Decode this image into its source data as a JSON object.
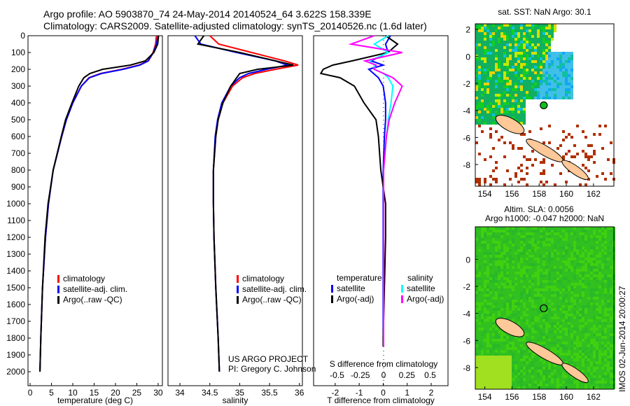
{
  "title_line1": "Argo profile: AO 5903870_74 24-May-2014 20140524_64 3.622S 158.339E",
  "title_line2": "Climatology: CARS2009. Satellite-adjusted climatology: synTS_20140526.nc (1.6d later)",
  "colors": {
    "climatology": "#ff0000",
    "satellite": "#0000ff",
    "argo": "#000000",
    "sal_satellite": "#00ffff",
    "sal_argo": "#ff00ff"
  },
  "chart_data": [
    {
      "type": "line",
      "name": "temperature",
      "xlabel": "temperature (deg C)",
      "ylabel": "",
      "xlim": [
        -0.5,
        31
      ],
      "ylim": [
        2080,
        0
      ],
      "xticks": [
        0,
        5,
        10,
        15,
        20,
        25,
        30
      ],
      "yticks": [
        0,
        100,
        200,
        300,
        400,
        500,
        600,
        700,
        800,
        900,
        1000,
        1100,
        1200,
        1300,
        1400,
        1500,
        1600,
        1700,
        1800,
        1900,
        2000
      ],
      "legend": [
        "climatology",
        "satellite-adj. clim.",
        "Argo(..raw -QC)"
      ],
      "legend_position": "lower-right",
      "pressure": [
        0,
        50,
        100,
        150,
        175,
        200,
        225,
        250,
        300,
        400,
        500,
        600,
        800,
        1000,
        1200,
        1500,
        1800,
        2000
      ],
      "series": [
        {
          "name": "climatology",
          "values": [
            29.6,
            29.4,
            28.8,
            27.6,
            25.5,
            21.5,
            16.5,
            13.8,
            12,
            10,
            8.5,
            7.4,
            5.4,
            4.3,
            3.6,
            2.9,
            2.5,
            2.3
          ]
        },
        {
          "name": "satellite-adj. clim.",
          "values": [
            30.0,
            29.6,
            28.9,
            27.7,
            25.7,
            21.8,
            16.7,
            13.9,
            12,
            10,
            8.5,
            7.4,
            5.4,
            4.3,
            3.6,
            2.9,
            2.5,
            2.3
          ]
        },
        {
          "name": "Argo(..raw -QC)",
          "values": [
            30.1,
            29.9,
            29.0,
            27.0,
            23.5,
            17.0,
            14.0,
            12.6,
            11.4,
            9.8,
            8.3,
            7.3,
            5.4,
            4.2,
            3.5,
            2.9,
            2.5,
            2.3
          ]
        }
      ]
    },
    {
      "type": "line",
      "name": "salinity",
      "xlabel": "salinity",
      "ylabel": "",
      "xlim": [
        33.8,
        36.05
      ],
      "ylim": [
        2080,
        0
      ],
      "xticks": [
        34,
        34.5,
        35,
        35.5,
        36
      ],
      "legend": [
        "climatology",
        "satellite-adj. clim.",
        "Argo(..raw -QC)"
      ],
      "legend_position": "lower-right",
      "annotation": [
        "US ARGO PROJECT",
        "PI: Gregory C. Johnson"
      ],
      "pressure": [
        0,
        50,
        100,
        150,
        175,
        200,
        225,
        250,
        300,
        400,
        500,
        600,
        800,
        1000,
        1200,
        1500,
        1800,
        2000
      ],
      "series": [
        {
          "name": "climatology",
          "values": [
            34.5,
            34.65,
            35.2,
            35.75,
            35.98,
            35.6,
            35.25,
            35.05,
            34.88,
            34.72,
            34.64,
            34.6,
            34.56,
            34.56,
            34.57,
            34.6,
            34.64,
            34.66
          ]
        },
        {
          "name": "satellite-adj. clim.",
          "values": [
            34.25,
            34.35,
            34.95,
            35.6,
            35.8,
            35.45,
            35.15,
            35.0,
            34.85,
            34.7,
            34.63,
            34.59,
            34.56,
            34.56,
            34.57,
            34.6,
            34.64,
            34.66
          ]
        },
        {
          "name": "Argo(..raw -QC)",
          "values": [
            34.4,
            34.3,
            35.0,
            35.6,
            35.9,
            35.3,
            35.0,
            34.95,
            34.85,
            34.72,
            34.64,
            34.6,
            34.56,
            34.56,
            34.57,
            34.6,
            34.64,
            34.66
          ]
        }
      ]
    },
    {
      "type": "line",
      "name": "differences",
      "xlabel": "T difference from climatology",
      "x2label": "S difference from climatology",
      "xlim": [
        -2.9,
        2.7
      ],
      "x2lim": [
        -0.5,
        0.5
      ],
      "xticks": [
        -2,
        -1,
        0,
        1,
        2
      ],
      "x2ticks": [
        -0.5,
        -0.25,
        0,
        0.25,
        0.5
      ],
      "legend_titles": [
        "temperature",
        "salinity"
      ],
      "legend": [
        "satellite",
        "Argo(-adj)",
        "satellite",
        "Argo(-adj)"
      ],
      "pressure": [
        0,
        50,
        100,
        150,
        175,
        200,
        225,
        250,
        300,
        400,
        500,
        600,
        800,
        1000,
        1200,
        1500,
        1800,
        1850
      ],
      "series": [
        {
          "name": "T satellite",
          "values": [
            0.3,
            0.1,
            0.2,
            -0.5,
            0.0,
            -0.6,
            -0.4,
            -0.2,
            0,
            0.1,
            0.1,
            0.05,
            0,
            0,
            0,
            0,
            0,
            0
          ]
        },
        {
          "name": "T Argo(-adj)",
          "values": [
            0.1,
            0.6,
            0.2,
            -1.3,
            -2.1,
            -2.5,
            -2.6,
            -1.8,
            -1.2,
            -0.8,
            -0.3,
            -0.2,
            -0.1,
            0.1,
            0.1,
            0.05,
            0,
            0
          ]
        },
        {
          "name": "S satellite",
          "values": [
            0.05,
            -0.1,
            0.05,
            -0.15,
            -0.1,
            -0.1,
            0.0,
            0.05,
            0.1,
            0.08,
            0.05,
            0.03,
            0,
            0,
            0,
            0,
            0,
            0
          ]
        },
        {
          "name": "S Argo(-adj)",
          "values": [
            -0.1,
            -0.35,
            0.2,
            -0.2,
            -0.08,
            -0.1,
            0.0,
            0.1,
            0.2,
            0.12,
            0.06,
            0.03,
            0,
            0,
            0,
            0,
            0,
            0
          ]
        }
      ]
    },
    {
      "type": "heatmap",
      "name": "sst-map",
      "title": "sat. SST: NaN Argo: 30.1",
      "xticks": [
        154,
        156,
        158,
        160,
        162
      ],
      "yticks": [
        2,
        0,
        -2,
        -4,
        -6,
        -8
      ],
      "argo_position": [
        158.339,
        -3.622
      ]
    },
    {
      "type": "heatmap",
      "name": "sla-map",
      "title_line1": "Altim. SLA: 0.0056",
      "title_line2": "Argo h1000: -0.047 h2000: NaN",
      "xticks": [
        154,
        156,
        158,
        160,
        162
      ],
      "yticks": [
        0,
        -2,
        -4,
        -6,
        -8
      ],
      "argo_position": [
        158.339,
        -3.622
      ]
    }
  ],
  "footer": "IMOS 02-Jun-2014 20:00:27"
}
